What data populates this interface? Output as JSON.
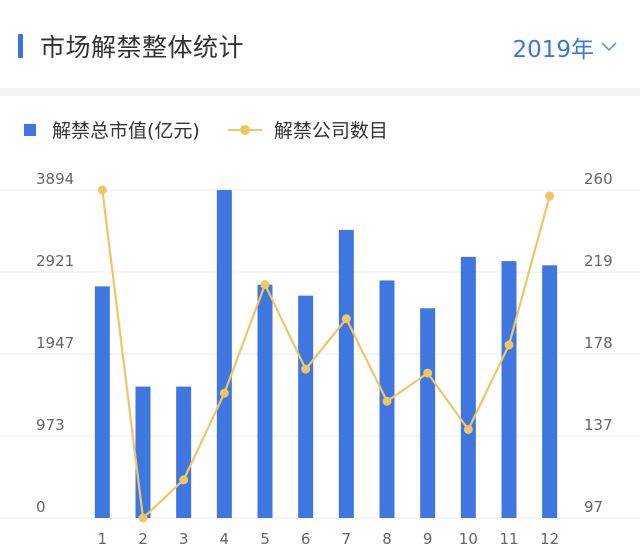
{
  "header": {
    "title": "市场解禁整体统计",
    "year": "2019年"
  },
  "legend": {
    "bar_label": "解禁总市值(亿元)",
    "line_label": "解禁公司数目"
  },
  "chart_data": {
    "type": "bar",
    "categories": [
      "1",
      "2",
      "3",
      "4",
      "5",
      "6",
      "7",
      "8",
      "9",
      "10",
      "11",
      "12"
    ],
    "series": [
      {
        "name": "解禁总市值(亿元)",
        "type": "bar",
        "axis": "left",
        "color": "#3f76e0",
        "values": [
          2750,
          1560,
          1560,
          3894,
          2770,
          2640,
          3420,
          2820,
          2490,
          3100,
          3050,
          3000
        ]
      },
      {
        "name": "解禁公司数目",
        "type": "line",
        "axis": "right",
        "color": "#f0c564",
        "values": [
          260,
          97,
          116,
          159,
          213,
          171,
          196,
          155,
          169,
          141,
          183,
          257
        ]
      }
    ],
    "y_left": {
      "ticks": [
        "3894",
        "2921",
        "1947",
        "973",
        "0"
      ],
      "min": 0,
      "max": 3894
    },
    "y_right": {
      "ticks": [
        "260",
        "219",
        "178",
        "137",
        "97"
      ],
      "min": 97,
      "max": 260
    },
    "grid": true
  }
}
